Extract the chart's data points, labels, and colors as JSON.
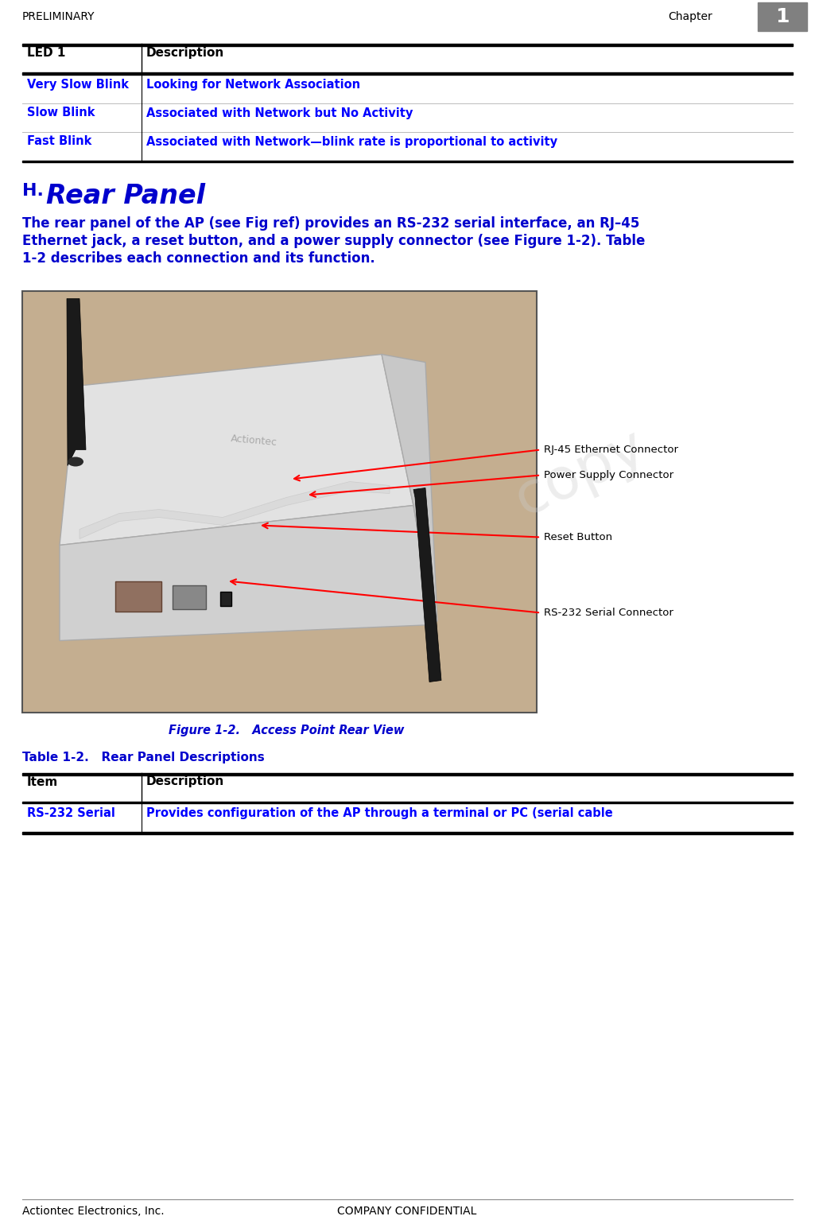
{
  "header_left": "PRELIMINARY",
  "header_right_text": "Chapter",
  "header_right_num": "1",
  "footer_left": "Actiontec Electronics, Inc.",
  "footer_right": "COMPANY CONFIDENTIAL",
  "table1_header": [
    "LED 1",
    "Description"
  ],
  "table1_rows": [
    [
      "Very Slow Blink",
      "Looking for Network Association"
    ],
    [
      "Slow Blink",
      "Associated with Network but No Activity"
    ],
    [
      "Fast Blink",
      "Associated with Network—blink rate is proportional to activity"
    ]
  ],
  "section_h": "H.",
  "section_title": "Rear Panel",
  "section_body_line1": "The rear panel of the AP (see Fig ref) provides an RS-232 serial interface, an RJ–45",
  "section_body_line2": "Ethernet jack, a reset button, and a power supply connector (see Figure 1-2). Table",
  "section_body_line3": "1-2 describes each connection and its function.",
  "figure_caption": "Figure 1-2.   Access Point Rear View",
  "table2_title": "Table 1-2.   Rear Panel Descriptions",
  "table2_header": [
    "Item",
    "Description"
  ],
  "table2_row1_col1": "RS-232 Serial",
  "table2_row1_col2": "Provides configuration of the AP through a terminal or PC (serial cable",
  "callout1_label": "RJ-45 Ethernet Connector",
  "callout2_label": "Power Supply Connector",
  "callout3_label": "Reset Button",
  "callout4_label": "RS-232 Serial Connector",
  "blue_color": "#0000FF",
  "section_color": "#0000CD",
  "chapter_bg": "#808080",
  "bg_tan": "#c8b89a",
  "device_white": "#e8e8e8",
  "device_gray": "#b0b0b0",
  "device_dark": "#404040"
}
